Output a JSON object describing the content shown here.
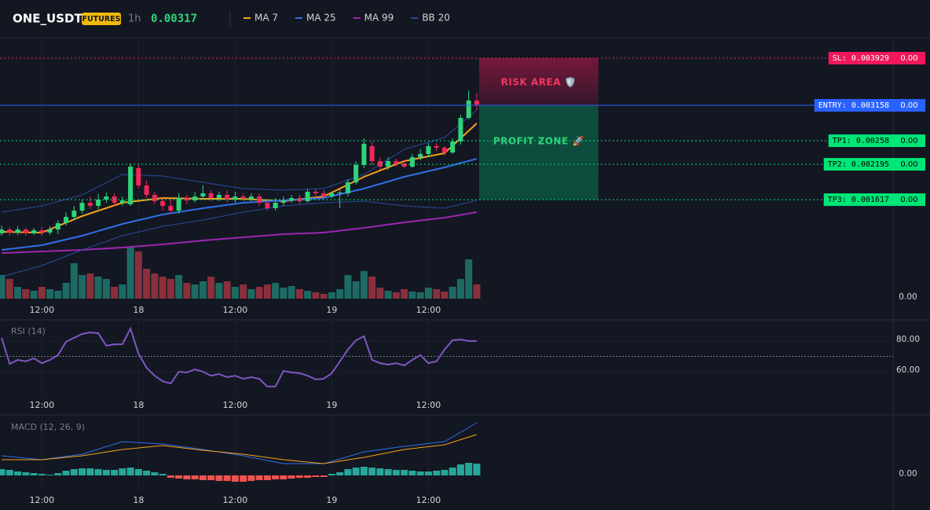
{
  "header": {
    "symbol": "ONE_USDT",
    "badge": "FUTURES",
    "interval": "1h",
    "price": 0.00317
  },
  "chart_data": [
    {
      "type": "candlestick",
      "xlim": [
        -0.2,
        110.7
      ],
      "xticks": [
        {
          "value": 5,
          "label": "12:00"
        },
        {
          "value": 17,
          "label": "18"
        },
        {
          "value": 29,
          "label": "12:00"
        },
        {
          "value": 41,
          "label": "19"
        },
        {
          "value": 53,
          "label": "12:00"
        }
      ],
      "ylim": [
        0,
        0.004263
      ],
      "yticks": [
        {
          "value": 0,
          "label": "0.00"
        }
      ],
      "up_color": "#2ed47a",
      "down_color": "#f0285a",
      "candles": [
        [
          0.001066,
          0.001194,
          0.001027,
          0.00113
        ],
        [
          0.00113,
          0.001168,
          0.001027,
          0.001079
        ],
        [
          0.001079,
          0.001181,
          0.00104,
          0.00113
        ],
        [
          0.00113,
          0.001156,
          0.001027,
          0.001066
        ],
        [
          0.001066,
          0.001156,
          0.00104,
          0.001117
        ],
        [
          0.001117,
          0.001168,
          0.001027,
          0.001079
        ],
        [
          0.001079,
          0.001181,
          0.00104,
          0.00113
        ],
        [
          0.00113,
          0.001284,
          0.001053,
          0.001233
        ],
        [
          0.001233,
          0.001412,
          0.001194,
          0.001335
        ],
        [
          0.001335,
          0.001515,
          0.001284,
          0.001438
        ],
        [
          0.001438,
          0.001618,
          0.001387,
          0.001566
        ],
        [
          0.001566,
          0.001669,
          0.001464,
          0.001515
        ],
        [
          0.001515,
          0.001708,
          0.001464,
          0.001618
        ],
        [
          0.001618,
          0.001733,
          0.001566,
          0.001669
        ],
        [
          0.001669,
          0.001721,
          0.001515,
          0.001566
        ],
        [
          0.001566,
          0.001669,
          0.001515,
          0.001605
        ],
        [
          0.001541,
          0.002208,
          0.001515,
          0.002157
        ],
        [
          0.002131,
          0.002183,
          0.001798,
          0.001849
        ],
        [
          0.001849,
          0.001926,
          0.001644,
          0.001695
        ],
        [
          0.001695,
          0.001746,
          0.001541,
          0.001592
        ],
        [
          0.001592,
          0.001669,
          0.001438,
          0.001515
        ],
        [
          0.001515,
          0.001618,
          0.001387,
          0.001438
        ],
        [
          0.001438,
          0.001721,
          0.001387,
          0.001644
        ],
        [
          0.001644,
          0.001695,
          0.001541,
          0.001605
        ],
        [
          0.001605,
          0.001746,
          0.001566,
          0.001669
        ],
        [
          0.001669,
          0.001849,
          0.001618,
          0.001721
        ],
        [
          0.001721,
          0.001772,
          0.001592,
          0.001644
        ],
        [
          0.001644,
          0.001746,
          0.001592,
          0.001695
        ],
        [
          0.001695,
          0.001772,
          0.001566,
          0.001618
        ],
        [
          0.001618,
          0.001746,
          0.001566,
          0.001669
        ],
        [
          0.001669,
          0.001721,
          0.001592,
          0.001631
        ],
        [
          0.001631,
          0.001721,
          0.001592,
          0.001669
        ],
        [
          0.001669,
          0.001721,
          0.001515,
          0.001566
        ],
        [
          0.001566,
          0.001618,
          0.001438,
          0.001477
        ],
        [
          0.001477,
          0.001644,
          0.001438,
          0.001566
        ],
        [
          0.001566,
          0.001669,
          0.001515,
          0.001605
        ],
        [
          0.001605,
          0.001695,
          0.001566,
          0.001644
        ],
        [
          0.001644,
          0.001695,
          0.001541,
          0.001592
        ],
        [
          0.001592,
          0.001798,
          0.001566,
          0.001746
        ],
        [
          0.001746,
          0.001798,
          0.001644,
          0.001721
        ],
        [
          0.001721,
          0.001772,
          0.001618,
          0.001669
        ],
        [
          0.001669,
          0.001746,
          0.001644,
          0.001721
        ],
        [
          0.001721,
          0.001798,
          0.001477,
          0.001733
        ],
        [
          0.001721,
          0.001952,
          0.001669,
          0.0019
        ],
        [
          0.0019,
          0.002247,
          0.001862,
          0.002183
        ],
        [
          0.002183,
          0.002619,
          0.002131,
          0.002529
        ],
        [
          0.002491,
          0.002568,
          0.002183,
          0.002247
        ],
        [
          0.002247,
          0.002311,
          0.002106,
          0.002157
        ],
        [
          0.002157,
          0.002311,
          0.002106,
          0.002247
        ],
        [
          0.002247,
          0.002286,
          0.002157,
          0.002208
        ],
        [
          0.002208,
          0.00226,
          0.002131,
          0.002157
        ],
        [
          0.002157,
          0.002363,
          0.002131,
          0.002311
        ],
        [
          0.002311,
          0.00244,
          0.00226,
          0.002363
        ],
        [
          0.002363,
          0.002542,
          0.002311,
          0.002491
        ],
        [
          0.002491,
          0.002542,
          0.002414,
          0.002465
        ],
        [
          0.002465,
          0.002491,
          0.002337,
          0.002388
        ],
        [
          0.002388,
          0.002619,
          0.002363,
          0.002568
        ],
        [
          0.002568,
          0.003005,
          0.002517,
          0.002953
        ],
        [
          0.002953,
          0.003403,
          0.002928,
          0.003236
        ],
        [
          0.003236,
          0.003364,
          0.003082,
          0.00317
        ]
      ],
      "volume": [
        30,
        25,
        15,
        12,
        10,
        15,
        12,
        10,
        20,
        45,
        30,
        32,
        28,
        25,
        15,
        18,
        65,
        60,
        38,
        32,
        28,
        25,
        30,
        20,
        18,
        22,
        28,
        20,
        22,
        15,
        18,
        12,
        15,
        18,
        20,
        14,
        16,
        12,
        10,
        8,
        6,
        8,
        12,
        30,
        22,
        35,
        28,
        14,
        10,
        8,
        12,
        9,
        8,
        14,
        12,
        9,
        15,
        25,
        50,
        18
      ],
      "volume_lim": [
        0,
        332
      ],
      "series": [
        {
          "name": "MA 7",
          "color": "#f7a21b",
          "x": [
            0,
            5,
            10,
            15,
            20,
            25,
            30,
            35,
            40,
            45,
            50,
            55,
            59
          ],
          "values": [
            0.001091,
            0.001079,
            0.001348,
            0.001566,
            0.001644,
            0.001631,
            0.001631,
            0.001592,
            0.001669,
            0.00199,
            0.002247,
            0.002375,
            0.002863
          ]
        },
        {
          "name": "MA 25",
          "color": "#2f6fe8",
          "x": [
            0,
            5,
            10,
            15,
            20,
            25,
            30,
            35,
            40,
            45,
            50,
            55,
            59
          ],
          "values": [
            0.000796,
            0.000873,
            0.001027,
            0.00122,
            0.001374,
            0.001477,
            0.001566,
            0.001605,
            0.001644,
            0.001798,
            0.00199,
            0.002144,
            0.002286
          ]
        },
        {
          "name": "MA 99",
          "color": "#9c27b0",
          "x": [
            0,
            5,
            10,
            15,
            20,
            25,
            30,
            35,
            40,
            45,
            50,
            55,
            59
          ],
          "values": [
            0.000745,
            0.00077,
            0.000796,
            0.000835,
            0.000886,
            0.00095,
            0.001002,
            0.001053,
            0.001079,
            0.001156,
            0.001245,
            0.001323,
            0.001412
          ]
        },
        {
          "name": "BB 20",
          "color": "#2a4a9e",
          "x": [
            0,
            5,
            10,
            15,
            20,
            25,
            30,
            35,
            40,
            45,
            50,
            55,
            59
          ],
          "values": [
            0.001412,
            0.001515,
            0.001695,
            0.002029,
            0.002003,
            0.0019,
            0.001798,
            0.001772,
            0.001798,
            0.002029,
            0.00244,
            0.002632,
            0.003082
          ],
          "lower": [
            0.00036,
            0.000539,
            0.000796,
            0.001027,
            0.001181,
            0.001284,
            0.001412,
            0.001515,
            0.001566,
            0.001592,
            0.001515,
            0.001477,
            0.001605
          ]
        }
      ],
      "levels": [
        {
          "label": "SL: 0.003929",
          "value": 0.003929,
          "tag": "0.00",
          "color": "#f0185a",
          "text_color": "#ffffff",
          "dash": "2 3"
        },
        {
          "label": "ENTRY: 0.003158",
          "value": 0.003158,
          "tag": "0.00",
          "color": "#2962ff",
          "text_color": "#ffffff",
          "dash": "none"
        },
        {
          "label": "TP1: 0.00258",
          "value": 0.00258,
          "tag": "0.00",
          "color": "#00e676",
          "text_color": "#000000",
          "dash": "2 3"
        },
        {
          "label": "TP2: 0.002195",
          "value": 0.002195,
          "tag": "0.00",
          "color": "#00e676",
          "text_color": "#000000",
          "dash": "2 3"
        },
        {
          "label": "TP3: 0.001617",
          "value": 0.001617,
          "tag": "0.00",
          "color": "#00e676",
          "text_color": "#000000",
          "dash": "2 3"
        }
      ],
      "zones": [
        {
          "label": "RISK AREA 🛡️",
          "from": 0.003929,
          "to": 0.003158,
          "x": [
            59.3,
            74.1
          ],
          "color": "#f0185a",
          "text_color": "#f23661"
        },
        {
          "label": "PROFIT ZONE 🚀",
          "from": 0.003158,
          "to": 0.001617,
          "x": [
            59.3,
            74.1
          ],
          "color": "#00c87a",
          "text_color": "#2ed47a"
        }
      ]
    },
    {
      "type": "line",
      "title": "RSI (14)",
      "color": "#7e57c2",
      "xlim": [
        -0.2,
        110.7
      ],
      "xticks": [
        {
          "value": 5,
          "label": "12:00"
        },
        {
          "value": 17,
          "label": "18"
        },
        {
          "value": 29,
          "label": "12:00"
        },
        {
          "value": 41,
          "label": "19"
        },
        {
          "value": 53,
          "label": "12:00"
        }
      ],
      "ylim": [
        43.6,
        93.3
      ],
      "yticks": [
        {
          "value": 80,
          "label": "80.00"
        },
        {
          "value": 60,
          "label": "60.00"
        }
      ],
      "midline": 70,
      "values": [
        82.1,
        65.1,
        67.7,
        66.7,
        68.7,
        65.6,
        67.7,
        70.8,
        79.5,
        82.1,
        84.6,
        85.6,
        85.1,
        76.9,
        77.9,
        77.9,
        88.2,
        71.8,
        62.6,
        57.4,
        53.8,
        52.3,
        60.0,
        59.5,
        61.5,
        60.0,
        57.4,
        58.5,
        56.4,
        57.4,
        55.4,
        56.4,
        55.4,
        50.3,
        50.3,
        60.5,
        59.5,
        59.0,
        57.4,
        54.9,
        55.4,
        59.0,
        66.7,
        74.4,
        80.5,
        83.1,
        67.7,
        65.6,
        64.6,
        65.6,
        64.1,
        67.7,
        70.8,
        65.6,
        66.7,
        74.4,
        80.5,
        81.0,
        80.0,
        80.0
      ]
    },
    {
      "type": "macd",
      "title": "MACD (12, 26, 9)",
      "xlim": [
        -0.2,
        110.7
      ],
      "xticks": [
        {
          "value": 5,
          "label": "12:00"
        },
        {
          "value": 17,
          "label": "18"
        },
        {
          "value": 29,
          "label": "12:00"
        },
        {
          "value": 41,
          "label": "19"
        },
        {
          "value": 53,
          "label": "12:00"
        }
      ],
      "ylim": [
        -20,
        75
      ],
      "yticks": [
        {
          "value": 0,
          "label": "0.00"
        }
      ],
      "up_color": "#26a69a",
      "down_color": "#ef5350",
      "histogram": [
        8,
        7,
        5,
        4,
        3,
        2,
        1,
        3,
        6,
        8,
        9,
        9,
        8,
        7,
        7,
        9,
        10,
        8,
        6,
        4,
        2,
        -3,
        -4,
        -5,
        -5,
        -6,
        -6,
        -7,
        -7,
        -8,
        -8,
        -7,
        -6,
        -6,
        -5,
        -5,
        -4,
        -3,
        -3,
        -2,
        -2,
        2,
        4,
        8,
        10,
        11,
        10,
        9,
        8,
        7,
        7,
        6,
        5,
        5,
        6,
        7,
        10,
        14,
        16,
        15
      ],
      "lines": [
        {
          "color": "#2f6fe8",
          "x": [
            0,
            5,
            10,
            15,
            20,
            25,
            30,
            35,
            40,
            45,
            50,
            55,
            59
          ],
          "values": [
            25,
            20,
            27,
            43,
            40,
            33,
            25,
            15,
            15,
            30,
            37,
            43,
            67
          ]
        },
        {
          "color": "#f7a21b",
          "x": [
            0,
            5,
            10,
            15,
            20,
            25,
            30,
            35,
            40,
            45,
            50,
            55,
            59
          ],
          "values": [
            20,
            20,
            25,
            33,
            38,
            32,
            27,
            20,
            15,
            23,
            33,
            39,
            52
          ]
        }
      ]
    }
  ]
}
